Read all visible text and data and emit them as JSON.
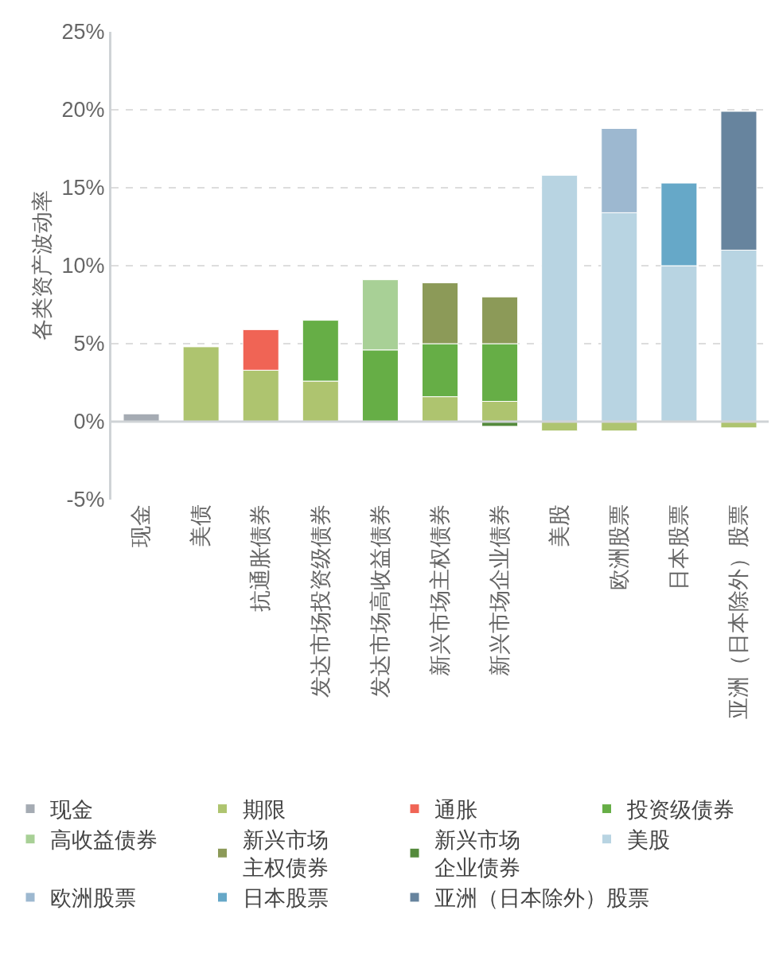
{
  "chart_data": {
    "type": "bar",
    "stacked": true,
    "ylabel": "各类资产波动率",
    "categories": [
      "现金",
      "美债",
      "抗通胀债券",
      "发达市场投资级债券",
      "发达市场高收益债券",
      "新兴市场主权债券",
      "新兴市场企业债券",
      "美股",
      "欧洲股票",
      "日本股票",
      "亚洲（日本除外）股票"
    ],
    "series": [
      {
        "name": "现金",
        "color": "#a5abb3",
        "values": [
          0.5,
          null,
          null,
          null,
          null,
          null,
          null,
          null,
          null,
          null,
          null
        ]
      },
      {
        "name": "期限",
        "color": "#aec46f",
        "values": [
          null,
          4.8,
          3.3,
          2.6,
          null,
          1.6,
          1.3,
          -0.6,
          -0.6,
          null,
          -0.4
        ]
      },
      {
        "name": "通胀",
        "color": "#f06455",
        "values": [
          null,
          null,
          2.6,
          null,
          null,
          null,
          null,
          null,
          null,
          null,
          null
        ]
      },
      {
        "name": "投资级债券",
        "color": "#66ae46",
        "values": [
          null,
          null,
          null,
          3.9,
          4.6,
          3.4,
          3.7,
          null,
          null,
          null,
          null
        ]
      },
      {
        "name": "高收益债券",
        "color": "#a8d096",
        "values": [
          null,
          null,
          null,
          null,
          4.5,
          null,
          null,
          null,
          null,
          null,
          null
        ]
      },
      {
        "name": "新兴市场主权债券",
        "color": "#8c9a58",
        "values": [
          null,
          null,
          null,
          null,
          null,
          3.9,
          3.0,
          null,
          null,
          null,
          null
        ]
      },
      {
        "name": "新兴市场企业债券",
        "color": "#548a3c",
        "values": [
          null,
          null,
          null,
          null,
          null,
          null,
          -0.3,
          null,
          null,
          null,
          null
        ]
      },
      {
        "name": "美股",
        "color": "#b8d4e2",
        "values": [
          null,
          null,
          null,
          null,
          null,
          null,
          null,
          15.8,
          13.4,
          10.0,
          11.0
        ]
      },
      {
        "name": "欧洲股票",
        "color": "#9db8d0",
        "values": [
          null,
          null,
          null,
          null,
          null,
          null,
          null,
          null,
          5.4,
          null,
          null
        ]
      },
      {
        "name": "日本股票",
        "color": "#66a8c8",
        "values": [
          null,
          null,
          null,
          null,
          null,
          null,
          null,
          null,
          null,
          5.3,
          null
        ]
      },
      {
        "name": "亚洲（日本除外）股票",
        "color": "#67849e",
        "values": [
          null,
          null,
          null,
          null,
          null,
          null,
          null,
          null,
          null,
          null,
          8.9
        ]
      }
    ],
    "ylim": [
      -5,
      25
    ],
    "yticks": [
      {
        "value": -5,
        "label": "-5%"
      },
      {
        "value": 0,
        "label": "0%"
      },
      {
        "value": 5,
        "label": "5%"
      },
      {
        "value": 10,
        "label": "10%"
      },
      {
        "value": 15,
        "label": "15%"
      },
      {
        "value": 20,
        "label": "20%"
      },
      {
        "value": 25,
        "label": "25%"
      }
    ],
    "grid": "y",
    "legend": "bottom"
  }
}
